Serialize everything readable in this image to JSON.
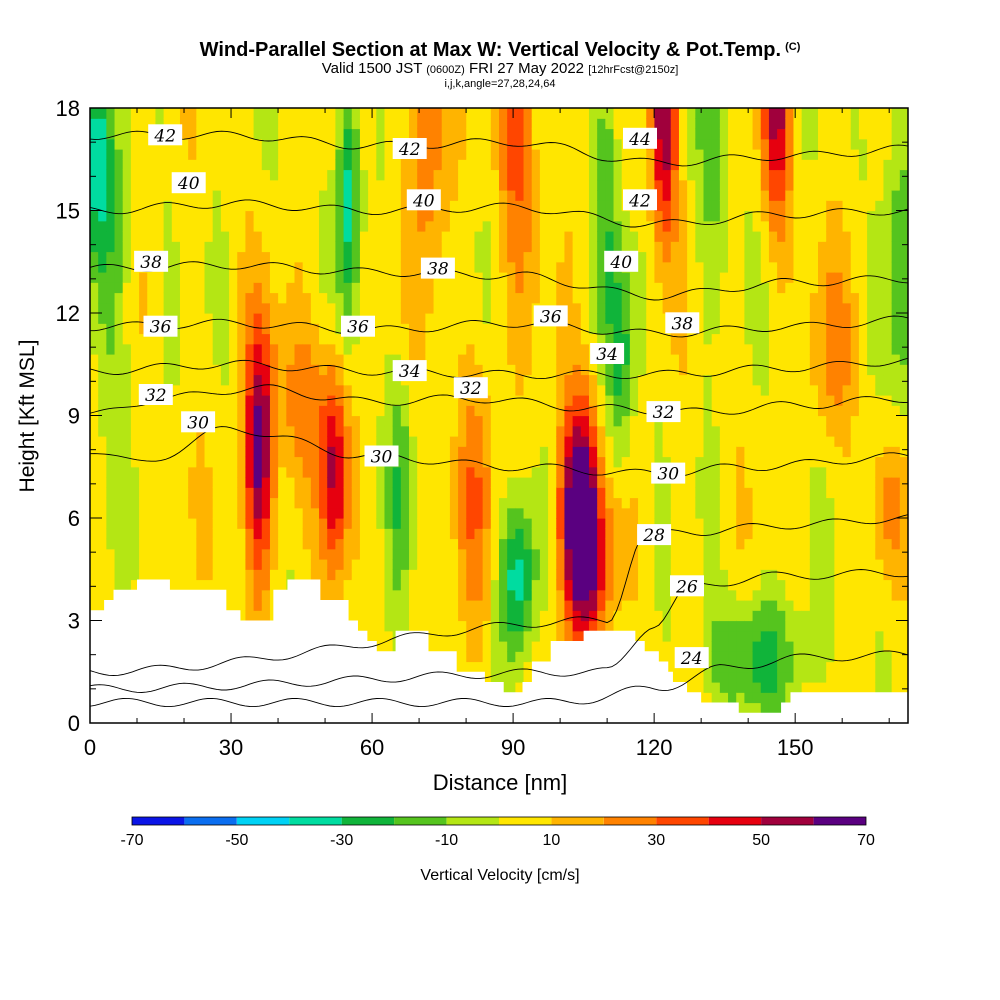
{
  "header": {
    "title": "Wind-Parallel Section at Max W: Vertical Velocity & Pot.Temp.",
    "copyright": "(C)",
    "valid_prefix": "Valid 1500 JST",
    "valid_utc": "(0600Z)",
    "valid_date": "FRI 27 May 2022",
    "fcst": "[12hrFcst@2150z]",
    "indices": "i,j,k,angle=27,28,24,64"
  },
  "chart_data": {
    "type": "heatmap",
    "xlabel": "Distance [nm]",
    "ylabel": "Height [Kft MSL]",
    "xlim": [
      0,
      174
    ],
    "ylim": [
      0,
      18
    ],
    "x_ticks": [
      "0",
      "30",
      "60",
      "90",
      "120",
      "150"
    ],
    "x_tick_values": [
      0,
      30,
      60,
      90,
      120,
      150
    ],
    "y_ticks": [
      "0",
      "3",
      "6",
      "9",
      "12",
      "15",
      "18"
    ],
    "y_tick_values": [
      0,
      3,
      6,
      9,
      12,
      15,
      18
    ],
    "colorbar": {
      "label": "Vertical Velocity [cm/s]",
      "tick_labels": [
        "-70",
        "-50",
        "-30",
        "-10",
        "10",
        "30",
        "50",
        "70"
      ],
      "tick_values": [
        -70,
        -50,
        -30,
        -10,
        10,
        30,
        50,
        70
      ],
      "bounds": [
        -70,
        -60,
        -50,
        -40,
        -30,
        -20,
        -10,
        0,
        10,
        20,
        30,
        40,
        50,
        60,
        70
      ],
      "colors": [
        "#0a14e6",
        "#0a6ef0",
        "#00d2f5",
        "#00dca0",
        "#10b43a",
        "#55c41e",
        "#b4e614",
        "#ffe600",
        "#ffb400",
        "#ff8200",
        "#ff4600",
        "#e6000f",
        "#a0003c",
        "#5a0080"
      ]
    },
    "terrain_kft": [
      [
        0,
        3.3
      ],
      [
        3,
        3.6
      ],
      [
        5,
        3.9
      ],
      [
        10,
        4.2
      ],
      [
        15,
        4.2
      ],
      [
        17,
        3.9
      ],
      [
        22,
        3.9
      ],
      [
        26,
        3.9
      ],
      [
        29,
        3.3
      ],
      [
        32,
        3.0
      ],
      [
        36,
        3.0
      ],
      [
        39,
        3.9
      ],
      [
        42,
        4.2
      ],
      [
        48,
        4.2
      ],
      [
        49,
        3.6
      ],
      [
        54,
        3.6
      ],
      [
        55,
        3.0
      ],
      [
        57,
        2.7
      ],
      [
        59,
        2.4
      ],
      [
        61,
        2.1
      ],
      [
        64,
        2.1
      ],
      [
        65,
        2.7
      ],
      [
        69,
        2.7
      ],
      [
        72,
        2.1
      ],
      [
        76,
        2.1
      ],
      [
        78,
        1.5
      ],
      [
        82,
        1.5
      ],
      [
        84,
        1.2
      ],
      [
        87,
        1.2
      ],
      [
        88,
        0.9
      ],
      [
        91,
        0.9
      ],
      [
        92,
        1.2
      ],
      [
        94,
        1.8
      ],
      [
        97,
        1.8
      ],
      [
        98,
        2.4
      ],
      [
        104,
        2.4
      ],
      [
        105,
        2.7
      ],
      [
        111,
        2.7
      ],
      [
        115,
        2.7
      ],
      [
        116,
        2.4
      ],
      [
        118,
        2.1
      ],
      [
        121,
        1.8
      ],
      [
        123,
        1.5
      ],
      [
        124,
        1.2
      ],
      [
        126,
        1.2
      ],
      [
        127,
        0.9
      ],
      [
        129,
        0.9
      ],
      [
        130,
        0.6
      ],
      [
        137,
        0.6
      ],
      [
        138,
        0.3
      ],
      [
        146,
        0.3
      ],
      [
        147,
        0.6
      ],
      [
        149,
        0.9
      ],
      [
        174,
        0.9
      ]
    ],
    "updrafts": [
      {
        "x": 36,
        "z": 7.9,
        "sx": 2.2,
        "sz": 2.6,
        "w": 60
      },
      {
        "x": 52,
        "z": 7.3,
        "sx": 2.0,
        "sz": 2.2,
        "w": 45
      },
      {
        "x": 45,
        "z": 9.3,
        "sx": 4.5,
        "sz": 1.8,
        "w": 22
      },
      {
        "x": 104,
        "z": 6.3,
        "sx": 3.0,
        "sz": 2.2,
        "w": 75
      },
      {
        "x": 107,
        "z": 4.4,
        "sx": 3.5,
        "sz": 1.6,
        "w": 30
      },
      {
        "x": 122,
        "z": 17.5,
        "sx": 2.0,
        "sz": 2.3,
        "w": 55
      },
      {
        "x": 146,
        "z": 18.0,
        "sx": 2.3,
        "sz": 2.6,
        "w": 45
      },
      {
        "x": 72,
        "z": 18.0,
        "sx": 2.8,
        "sz": 3.5,
        "w": 28
      },
      {
        "x": 91,
        "z": 17.5,
        "sx": 3.0,
        "sz": 3.5,
        "w": 28
      },
      {
        "x": 82,
        "z": 6.5,
        "sx": 3.0,
        "sz": 3.0,
        "w": 20
      },
      {
        "x": 158,
        "z": 10.8,
        "sx": 3.5,
        "sz": 2.0,
        "w": 18
      },
      {
        "x": 170,
        "z": 6.3,
        "sx": 3.0,
        "sz": 1.5,
        "w": 18
      }
    ],
    "downdrafts": [
      {
        "x": 91,
        "z": 4.2,
        "sx": 2.8,
        "sz": 1.6,
        "w": -38
      },
      {
        "x": 113,
        "z": 10.6,
        "sx": 2.0,
        "sz": 2.2,
        "w": -28
      },
      {
        "x": 55,
        "z": 15.5,
        "sx": 1.6,
        "sz": 2.6,
        "w": -40
      },
      {
        "x": 1,
        "z": 16.5,
        "sx": 2.0,
        "sz": 2.0,
        "w": -35
      },
      {
        "x": 4,
        "z": 13.5,
        "sx": 3.0,
        "sz": 3.0,
        "w": -20
      },
      {
        "x": 66,
        "z": 7.0,
        "sx": 1.8,
        "sz": 2.5,
        "w": -20
      },
      {
        "x": 142,
        "z": 2.0,
        "sx": 8.0,
        "sz": 1.2,
        "w": -25
      },
      {
        "x": 172,
        "z": 13.5,
        "sx": 2.5,
        "sz": 4.0,
        "w": -20
      },
      {
        "x": 133,
        "z": 17.0,
        "sx": 2.5,
        "sz": 3.0,
        "w": -20
      },
      {
        "x": 110,
        "z": 16.0,
        "sx": 2.0,
        "sz": 3.0,
        "w": -22
      }
    ],
    "isentropes": [
      {
        "theta": 24,
        "at_x": [
          0,
          100,
          120,
          135,
          150,
          174
        ],
        "z": [
          0.6,
          0.6,
          1.0,
          1.6,
          1.9,
          2.0
        ]
      },
      {
        "theta": 26,
        "at_x": [
          0,
          110,
          120,
          128,
          145,
          174
        ],
        "z": [
          1.0,
          1.5,
          2.9,
          4.0,
          4.3,
          4.4
        ]
      },
      {
        "theta": 28,
        "at_x": [
          0,
          110,
          118,
          128,
          150,
          174
        ],
        "z": [
          1.5,
          3.0,
          5.5,
          5.6,
          5.8,
          6.0
        ]
      },
      {
        "theta": 30,
        "at_x": [
          0,
          10,
          30,
          60,
          90,
          120,
          140,
          174
        ],
        "z": [
          8.0,
          7.6,
          8.6,
          7.8,
          7.5,
          7.3,
          7.5,
          7.8
        ]
      },
      {
        "theta": 32,
        "at_x": [
          0,
          15,
          35,
          60,
          80,
          110,
          130,
          150,
          174
        ],
        "z": [
          9.0,
          9.5,
          9.8,
          9.4,
          9.5,
          9.2,
          9.1,
          9.3,
          9.5
        ]
      },
      {
        "theta": 34,
        "at_x": [
          0,
          30,
          60,
          90,
          120,
          150,
          174
        ],
        "z": [
          10.3,
          10.5,
          10.3,
          10.2,
          10.2,
          10.4,
          10.6
        ]
      },
      {
        "theta": 36,
        "at_x": [
          0,
          30,
          60,
          90,
          120,
          150,
          174
        ],
        "z": [
          11.6,
          11.7,
          11.5,
          11.7,
          11.4,
          11.6,
          11.8
        ]
      },
      {
        "theta": 38,
        "at_x": [
          0,
          30,
          60,
          90,
          120,
          150,
          174
        ],
        "z": [
          13.3,
          13.4,
          13.2,
          13.1,
          12.5,
          12.9,
          13.0
        ]
      },
      {
        "theta": 40,
        "at_x": [
          0,
          30,
          60,
          90,
          120,
          150,
          174
        ],
        "z": [
          15.0,
          15.2,
          15.0,
          15.1,
          14.6,
          14.9,
          15.0
        ]
      },
      {
        "theta": 42,
        "at_x": [
          0,
          30,
          60,
          90,
          120,
          150,
          174
        ],
        "z": [
          17.2,
          17.2,
          16.9,
          17.0,
          16.4,
          16.6,
          16.8
        ]
      }
    ],
    "contour_labels": [
      {
        "text": "42",
        "x": 16,
        "z": 17.2
      },
      {
        "text": "40",
        "x": 21,
        "z": 15.8
      },
      {
        "text": "38",
        "x": 13,
        "z": 13.5
      },
      {
        "text": "36",
        "x": 15,
        "z": 11.6
      },
      {
        "text": "32",
        "x": 14,
        "z": 9.6
      },
      {
        "text": "30",
        "x": 23,
        "z": 8.8
      },
      {
        "text": "42",
        "x": 68,
        "z": 16.8
      },
      {
        "text": "40",
        "x": 71,
        "z": 15.3
      },
      {
        "text": "38",
        "x": 74,
        "z": 13.3
      },
      {
        "text": "36",
        "x": 57,
        "z": 11.6
      },
      {
        "text": "34",
        "x": 68,
        "z": 10.3
      },
      {
        "text": "32",
        "x": 81,
        "z": 9.8
      },
      {
        "text": "30",
        "x": 62,
        "z": 7.8
      },
      {
        "text": "36",
        "x": 98,
        "z": 11.9
      },
      {
        "text": "34",
        "x": 110,
        "z": 10.8
      },
      {
        "text": "44",
        "x": 117,
        "z": 17.1
      },
      {
        "text": "42",
        "x": 117,
        "z": 15.3
      },
      {
        "text": "40",
        "x": 113,
        "z": 13.5
      },
      {
        "text": "38",
        "x": 126,
        "z": 11.7
      },
      {
        "text": "32",
        "x": 122,
        "z": 9.1
      },
      {
        "text": "30",
        "x": 123,
        "z": 7.3
      },
      {
        "text": "28",
        "x": 120,
        "z": 5.5
      },
      {
        "text": "26",
        "x": 127,
        "z": 4.0
      },
      {
        "text": "24",
        "x": 128,
        "z": 1.9
      }
    ]
  }
}
